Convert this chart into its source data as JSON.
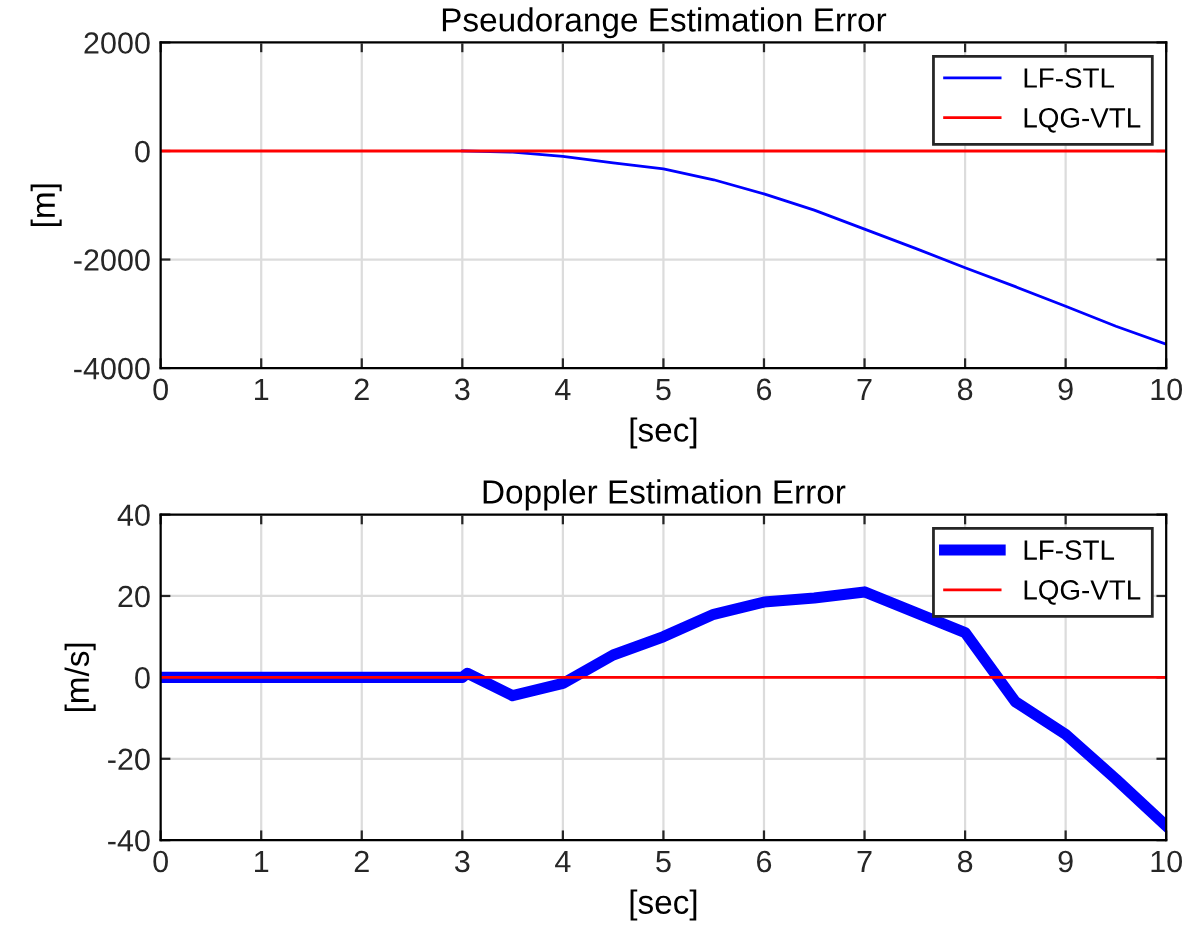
{
  "chart_data": [
    {
      "type": "line",
      "title": "Pseudorange Estimation Error",
      "xlabel": "[sec]",
      "ylabel": "[m]",
      "xlim": [
        0,
        10
      ],
      "ylim": [
        -4000,
        2000
      ],
      "xticks": [
        0,
        1,
        2,
        3,
        4,
        5,
        6,
        7,
        8,
        9,
        10
      ],
      "yticks": [
        -4000,
        -2000,
        0,
        2000
      ],
      "grid": true,
      "legend": "top right",
      "series": [
        {
          "name": "LF-STL",
          "color": "#0000ff",
          "x": [
            3,
            3.5,
            4,
            4.5,
            5,
            5.5,
            6,
            6.5,
            7,
            7.5,
            8,
            8.5,
            9,
            9.5,
            10
          ],
          "values": [
            0,
            -20,
            -100,
            -220,
            -330,
            -530,
            -790,
            -1090,
            -1440,
            -1790,
            -2150,
            -2500,
            -2860,
            -3230,
            -3560
          ]
        },
        {
          "name": "LQG-VTL",
          "color": "#ff0000",
          "x": [
            0,
            10
          ],
          "values": [
            0,
            0
          ]
        }
      ]
    },
    {
      "type": "line",
      "title": "Doppler Estimation Error",
      "xlabel": "[sec]",
      "ylabel": "[m/s]",
      "xlim": [
        0,
        10
      ],
      "ylim": [
        -40,
        40
      ],
      "xticks": [
        0,
        1,
        2,
        3,
        4,
        5,
        6,
        7,
        8,
        9,
        10
      ],
      "yticks": [
        -40,
        -20,
        0,
        20,
        40
      ],
      "grid": true,
      "legend": "top right",
      "series": [
        {
          "name": "LF-STL",
          "color": "#0000ff",
          "x": [
            0,
            1,
            2,
            3,
            3.05,
            3.5,
            4,
            4.5,
            5,
            5.5,
            6,
            6.5,
            7,
            8,
            8.5,
            9,
            9.5,
            10
          ],
          "values": [
            0,
            0,
            0,
            0,
            1,
            -4.5,
            -1.5,
            5.5,
            10,
            15.5,
            18.5,
            19.5,
            21,
            11,
            -6,
            -14,
            -25,
            -36.5
          ]
        },
        {
          "name": "LQG-VTL",
          "color": "#ff0000",
          "x": [
            0,
            10
          ],
          "values": [
            0,
            0
          ]
        }
      ]
    }
  ]
}
